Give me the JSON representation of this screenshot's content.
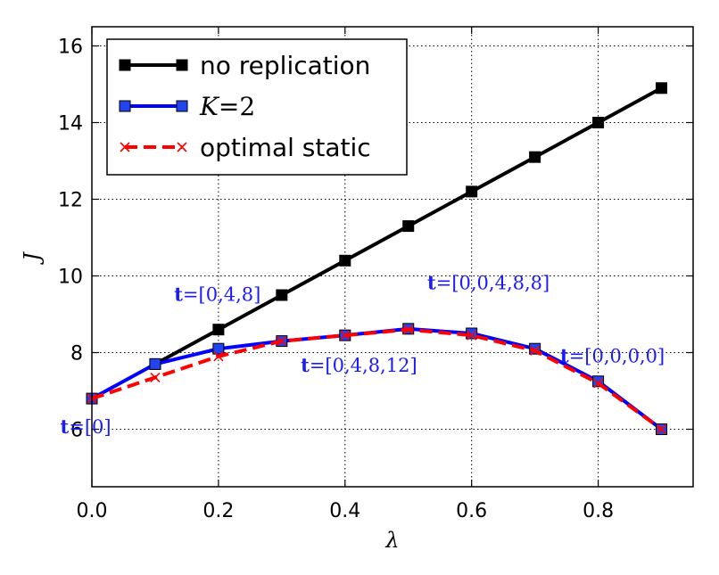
{
  "chart_data": {
    "type": "line",
    "xlabel": "λ",
    "ylabel": "J",
    "xlim": [
      0.0,
      0.95
    ],
    "ylim": [
      4.5,
      16.5
    ],
    "grid": true,
    "x_ticks": [
      0.0,
      0.2,
      0.4,
      0.6,
      0.8
    ],
    "x_tick_labels": [
      "0.0",
      "0.2",
      "0.4",
      "0.6",
      "0.8"
    ],
    "y_ticks": [
      6,
      8,
      10,
      12,
      14,
      16
    ],
    "y_tick_labels": [
      "6",
      "8",
      "10",
      "12",
      "14",
      "16"
    ],
    "legend_position": "top-left",
    "series": [
      {
        "name": "no replication",
        "color": "#000000",
        "style": "solid",
        "marker": "square",
        "x": [
          0.1,
          0.2,
          0.3,
          0.4,
          0.5,
          0.6,
          0.7,
          0.8,
          0.9
        ],
        "y": [
          7.7,
          8.6,
          9.5,
          10.4,
          11.3,
          12.2,
          13.1,
          14.0,
          14.9
        ]
      },
      {
        "name": "K=2",
        "legend_var": "K",
        "legend_eq": "=2",
        "color": "#0000ff",
        "style": "solid",
        "marker": "square",
        "x": [
          0.0,
          0.1,
          0.2,
          0.3,
          0.4,
          0.5,
          0.6,
          0.7,
          0.8,
          0.9
        ],
        "y": [
          6.8,
          7.7,
          8.1,
          8.3,
          8.45,
          8.62,
          8.5,
          8.1,
          7.25,
          6.0
        ]
      },
      {
        "name": "optimal static",
        "color": "#ff0000",
        "style": "dashed",
        "marker": "x",
        "x": [
          0.0,
          0.1,
          0.2,
          0.3,
          0.4,
          0.5,
          0.6,
          0.7,
          0.8,
          0.9
        ],
        "y": [
          6.8,
          7.35,
          7.9,
          8.3,
          8.45,
          8.6,
          8.45,
          8.05,
          7.2,
          6.0
        ]
      }
    ],
    "annotations": [
      {
        "bold": "t",
        "rest": "=[0]",
        "x": -0.05,
        "y": 5.9
      },
      {
        "bold": "t",
        "rest": "=[0,4,8]",
        "x": 0.13,
        "y": 9.35
      },
      {
        "bold": "t",
        "rest": "=[0,4,8,12]",
        "x": 0.33,
        "y": 7.5
      },
      {
        "bold": "t",
        "rest": "=[0,0,4,8,8]",
        "x": 0.53,
        "y": 9.65
      },
      {
        "bold": "t",
        "rest": "=[0,0,0,0]",
        "x": 0.74,
        "y": 7.75
      }
    ]
  }
}
